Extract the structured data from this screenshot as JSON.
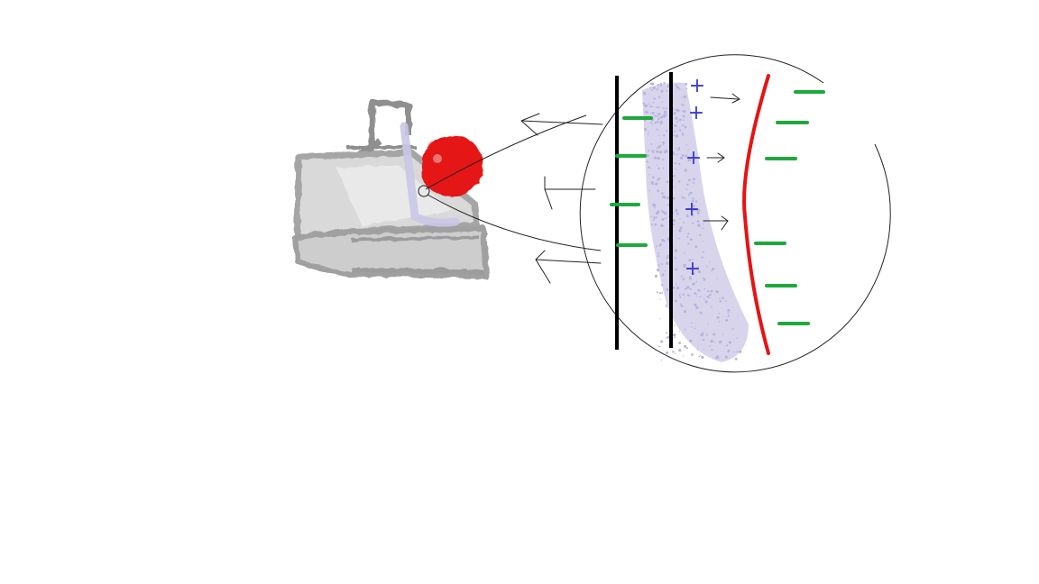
{
  "colors": {
    "background": "#ffffff",
    "apparatus_gray": "#cfcfcf",
    "apparatus_dark": "#9a9a9a",
    "electrolyte_lavender": "#c9c6e6",
    "electrode_red": "#e51414",
    "positive_charge": "#3a3ad0",
    "negative_charge": "#1fa83c",
    "wall_black": "#000000",
    "arrow_black": "#222222"
  },
  "charges": {
    "positive_symbol": "+",
    "negative_symbol": "−",
    "positive_count": 6,
    "negative_left_count": 4,
    "negative_right_count": 6
  },
  "icons": {
    "apparatus": "beaker-with-stand-icon",
    "electrode": "red-electrode-blob-icon",
    "magnifier": "magnified-view-circle-icon",
    "arrow": "arrow-icon"
  }
}
